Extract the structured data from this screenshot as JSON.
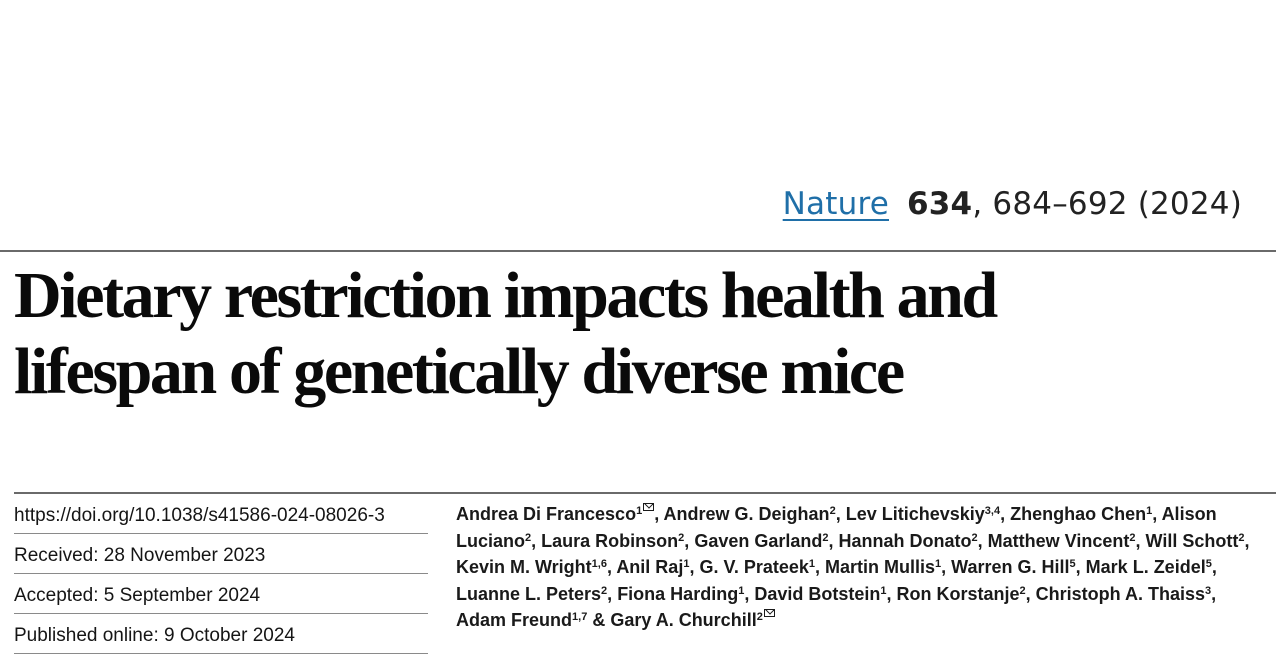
{
  "citation": {
    "journal": "Nature",
    "volume": "634",
    "pages_year": ", 684–692 (2024)"
  },
  "title": {
    "line1": "Dietary restriction impacts health and",
    "line2": "lifespan of genetically diverse mice"
  },
  "meta": {
    "doi": "https://doi.org/10.1038/s41586-024-08026-3",
    "received": "Received: 28 November 2023",
    "accepted": "Accepted: 5 September 2024",
    "published": "Published online: 9 October 2024"
  },
  "authors": [
    {
      "name": "Andrea Di Francesco",
      "aff": "1",
      "corresponding": true
    },
    {
      "name": "Andrew G. Deighan",
      "aff": "2"
    },
    {
      "name": "Lev Litichevskiy",
      "aff": "3,4"
    },
    {
      "name": "Zhenghao Chen",
      "aff": "1"
    },
    {
      "name": "Alison Luciano",
      "aff": "2"
    },
    {
      "name": "Laura Robinson",
      "aff": "2"
    },
    {
      "name": "Gaven Garland",
      "aff": "2"
    },
    {
      "name": "Hannah Donato",
      "aff": "2"
    },
    {
      "name": "Matthew Vincent",
      "aff": "2"
    },
    {
      "name": "Will Schott",
      "aff": "2"
    },
    {
      "name": "Kevin M. Wright",
      "aff": "1,6"
    },
    {
      "name": "Anil Raj",
      "aff": "1"
    },
    {
      "name": "G. V. Prateek",
      "aff": "1"
    },
    {
      "name": "Martin Mullis",
      "aff": "1"
    },
    {
      "name": "Warren G. Hill",
      "aff": "5"
    },
    {
      "name": "Mark L. Zeidel",
      "aff": "5"
    },
    {
      "name": "Luanne L. Peters",
      "aff": "2"
    },
    {
      "name": "Fiona Harding",
      "aff": "1"
    },
    {
      "name": "David Botstein",
      "aff": "1"
    },
    {
      "name": "Ron Korstanje",
      "aff": "2"
    },
    {
      "name": "Christoph A. Thaiss",
      "aff": "3"
    },
    {
      "name": "Adam Freund",
      "aff": "1,7"
    },
    {
      "name": "Gary A. Churchill",
      "aff": "2",
      "corresponding": true
    }
  ],
  "author_separator": ", ",
  "last_author_joiner": " & "
}
